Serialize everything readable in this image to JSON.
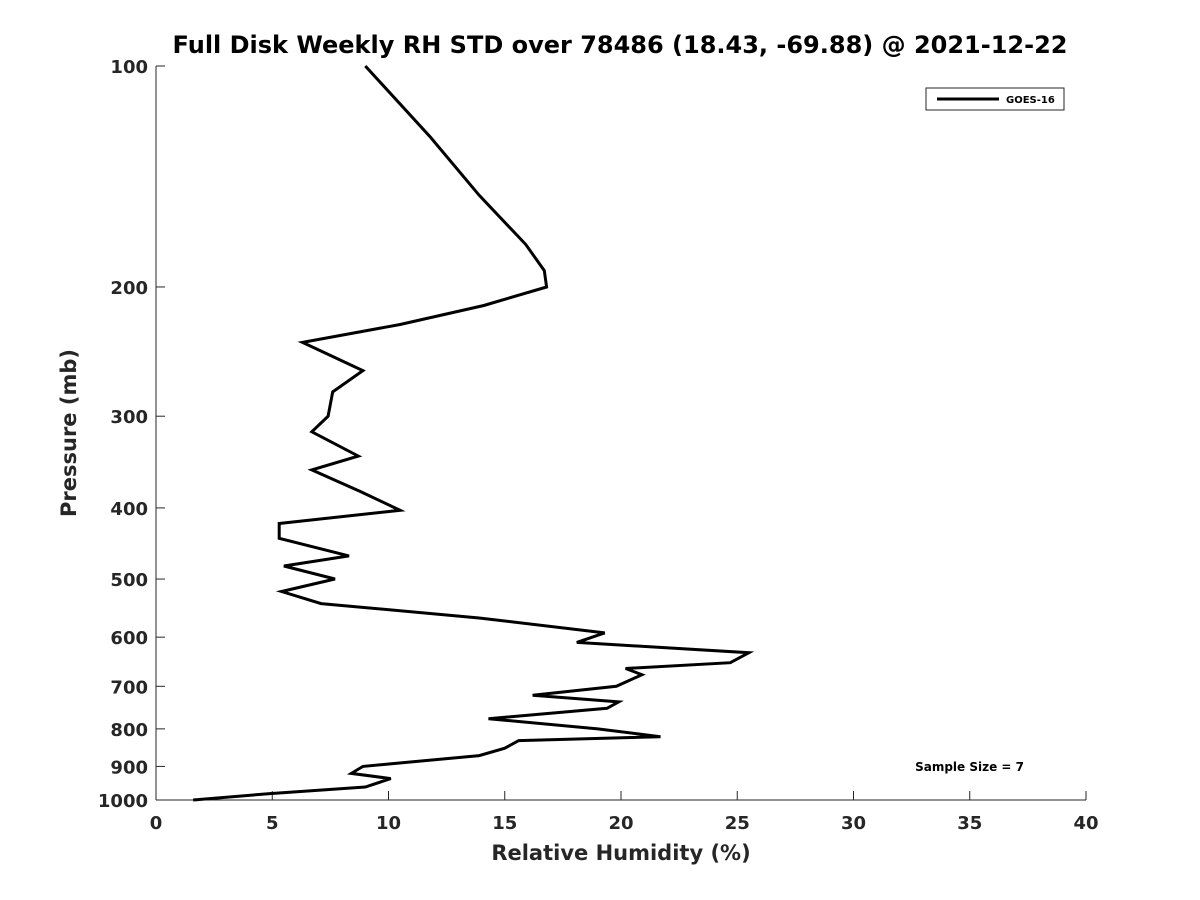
{
  "chart_data": {
    "type": "line",
    "title": "Full Disk Weekly RH STD over 78486 (18.43, -69.88) @ 2021-12-22",
    "xlabel": "Relative Humidity (%)",
    "ylabel": "Pressure (mb)",
    "xlim": [
      0,
      40
    ],
    "ylim": [
      100,
      1000
    ],
    "y_scale": "log",
    "y_reversed": true,
    "grid": false,
    "legend_position": "top-right",
    "x_ticks": [
      "0",
      "5",
      "10",
      "15",
      "20",
      "25",
      "30",
      "35",
      "40"
    ],
    "y_ticks": [
      "100",
      "200",
      "300",
      "400",
      "500",
      "600",
      "700",
      "800",
      "900",
      "1000"
    ],
    "annotation": "Sample Size = 7",
    "series": [
      {
        "name": "GOES-16",
        "color": "#000000",
        "points": [
          [
            9.0,
            100
          ],
          [
            11.8,
            125
          ],
          [
            13.9,
            150
          ],
          [
            15.9,
            175
          ],
          [
            16.7,
            190
          ],
          [
            16.8,
            200
          ],
          [
            14.1,
            212
          ],
          [
            10.5,
            225
          ],
          [
            6.3,
            238
          ],
          [
            8.9,
            260
          ],
          [
            7.6,
            278
          ],
          [
            7.4,
            300
          ],
          [
            6.7,
            315
          ],
          [
            8.7,
            340
          ],
          [
            6.7,
            355
          ],
          [
            8.8,
            380
          ],
          [
            10.5,
            403
          ],
          [
            5.3,
            420
          ],
          [
            5.3,
            440
          ],
          [
            8.3,
            465
          ],
          [
            5.5,
            480
          ],
          [
            7.7,
            500
          ],
          [
            5.4,
            520
          ],
          [
            7.1,
            540
          ],
          [
            13.9,
            565
          ],
          [
            19.3,
            592
          ],
          [
            18.1,
            610
          ],
          [
            25.5,
            630
          ],
          [
            24.7,
            650
          ],
          [
            20.2,
            662
          ],
          [
            20.9,
            675
          ],
          [
            19.8,
            700
          ],
          [
            16.2,
            720
          ],
          [
            19.9,
            735
          ],
          [
            19.4,
            750
          ],
          [
            14.3,
            775
          ],
          [
            19.0,
            800
          ],
          [
            21.7,
            820
          ],
          [
            15.6,
            830
          ],
          [
            15.0,
            850
          ],
          [
            13.9,
            870
          ],
          [
            8.9,
            900
          ],
          [
            8.4,
            920
          ],
          [
            10.1,
            935
          ],
          [
            9.0,
            960
          ],
          [
            4.9,
            980
          ],
          [
            1.6,
            1000
          ]
        ]
      }
    ]
  }
}
